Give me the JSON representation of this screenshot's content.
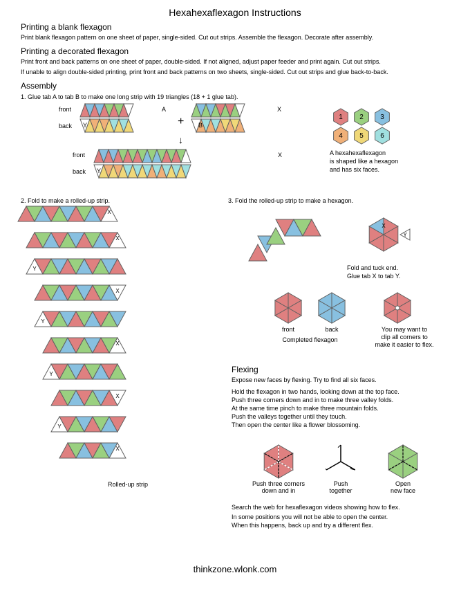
{
  "palette": {
    "red": "#df8080",
    "green": "#9ad080",
    "blue": "#88c0e0",
    "yellow": "#f0d878",
    "orange": "#f0b078",
    "cyan": "#a0e0e0",
    "stroke": "#606060",
    "white": "#ffffff"
  },
  "title": "Hexahexaflexagon Instructions",
  "section1": {
    "heading": "Printing a blank flexagon",
    "text": "Print blank flexagon pattern on one sheet of paper, single-sided. Cut out strips. Assemble the flexagon. Decorate after assembly."
  },
  "section2": {
    "heading": "Printing a decorated flexagon",
    "text1": "Print front and back patterns on one sheet of paper, double-sided. If not aligned, adjust paper feeder and print again. Cut out strips.",
    "text2": "If unable to align double-sided printing, print front and back patterns on two sheets, single-sided. Cut out strips and glue back-to-back."
  },
  "assembly": {
    "heading": "Assembly",
    "step1": "1. Glue tab A to tab B to make one long strip with 19 triangles (18 + 1 glue tab).",
    "step2": "2. Fold to make a rolled-up strip.",
    "step3": "3. Fold the rolled-up strip to make a hexagon.",
    "labels": {
      "front": "front",
      "back": "back",
      "A": "A",
      "B": "B",
      "X": "X",
      "Y": "Y",
      "plus": "+",
      "arrow_down": "↓"
    },
    "rolled_caption": "Rolled-up strip",
    "hexnums": [
      "1",
      "2",
      "3",
      "4",
      "5",
      "6"
    ],
    "hexnums_text": [
      "A hexahexaflexagon",
      "is shaped like a hexagon",
      "and has six faces."
    ],
    "fold_tuck": [
      "Fold and tuck end.",
      "Glue tab X to tab Y."
    ],
    "completed": "Completed flexagon",
    "clip": [
      "You may want to",
      "clip all corners to",
      "make it easier to flex."
    ]
  },
  "flexing": {
    "heading": "Flexing",
    "intro": "Expose new faces by flexing. Try to find all six faces.",
    "steps": [
      "Hold the flexagon in two hands, looking down at the top face.",
      "Push three corners down and in to make three valley folds.",
      "At the same time pinch to make three mountain folds.",
      "Push the valleys together until they touch.",
      "Then open the center like a flower blossoming."
    ],
    "captions": [
      "Push three corners\ndown and in",
      "Push\ntogether",
      "Open\nnew face"
    ],
    "search": "Search the web for hexaflexagon videos showing how to flex.",
    "note": [
      "In some positions you will not be able to open the center.",
      "When this happens, back up and try a different flex."
    ]
  },
  "footer": "thinkzone.wlonk.com",
  "strips": {
    "tri_w": 22,
    "front_top": [
      "red",
      "blue",
      "red",
      "blue",
      "red",
      "green",
      "red",
      "green",
      "red",
      "white"
    ],
    "back_top": [
      "white",
      "yellow",
      "orange",
      "yellow",
      "orange",
      "yellow",
      "cyan",
      "yellow",
      "cyan",
      "yellow"
    ],
    "front_top2": [
      "green",
      "blue",
      "green",
      "blue",
      "green",
      "red",
      "green",
      "red",
      "green",
      "white"
    ],
    "back_top2": [
      "white",
      "orange",
      "cyan",
      "orange",
      "cyan",
      "orange",
      "yellow",
      "orange",
      "yellow",
      "orange"
    ],
    "joined_front": [
      "red",
      "blue",
      "red",
      "blue",
      "red",
      "green",
      "red",
      "green",
      "red",
      "green",
      "blue",
      "green",
      "blue",
      "green",
      "red",
      "green",
      "red",
      "green",
      "white"
    ],
    "joined_back": [
      "white",
      "yellow",
      "orange",
      "yellow",
      "orange",
      "yellow",
      "cyan",
      "yellow",
      "cyan",
      "yellow",
      "cyan",
      "orange",
      "cyan",
      "orange",
      "cyan",
      "yellow",
      "cyan",
      "yellow",
      "cyan"
    ]
  },
  "rolled_rows": [
    {
      "start": 0,
      "n": 11,
      "colors": [
        "red",
        "green",
        "blue",
        "red",
        "green",
        "blue",
        "red",
        "green",
        "blue",
        "red",
        "white"
      ],
      "skip_first": false,
      "y_first": false
    },
    {
      "start": 1,
      "n": 11,
      "colors": [
        "red",
        "green",
        "blue",
        "red",
        "green",
        "blue",
        "red",
        "green",
        "blue",
        "red",
        "white"
      ],
      "skip_first": false,
      "y_first": false
    },
    {
      "start": 1,
      "n": 11,
      "colors": [
        "white",
        "red",
        "green",
        "blue",
        "red",
        "green",
        "blue",
        "red",
        "green",
        "blue",
        "red"
      ],
      "skip_first": false,
      "y_first": true
    },
    {
      "start": 2,
      "n": 10,
      "colors": [
        "red",
        "green",
        "blue",
        "red",
        "green",
        "blue",
        "red",
        "green",
        "blue",
        "white"
      ],
      "skip_first": false,
      "y_first": false
    },
    {
      "start": 2,
      "n": 10,
      "colors": [
        "white",
        "red",
        "green",
        "blue",
        "red",
        "green",
        "blue",
        "red",
        "green",
        "blue"
      ],
      "skip_first": false,
      "y_first": true
    },
    {
      "start": 3,
      "n": 9,
      "colors": [
        "red",
        "green",
        "blue",
        "red",
        "green",
        "blue",
        "red",
        "green",
        "white"
      ],
      "skip_first": false,
      "y_first": false
    },
    {
      "start": 3,
      "n": 9,
      "colors": [
        "white",
        "red",
        "green",
        "blue",
        "red",
        "green",
        "blue",
        "red",
        "green"
      ],
      "skip_first": false,
      "y_first": true
    },
    {
      "start": 4,
      "n": 8,
      "colors": [
        "red",
        "green",
        "blue",
        "red",
        "green",
        "blue",
        "red",
        "white"
      ],
      "skip_first": false,
      "y_first": false
    },
    {
      "start": 4,
      "n": 8,
      "colors": [
        "white",
        "red",
        "green",
        "blue",
        "red",
        "green",
        "blue",
        "red"
      ],
      "skip_first": false,
      "y_first": true
    },
    {
      "start": 5,
      "n": 7,
      "colors": [
        "red",
        "green",
        "blue",
        "red",
        "green",
        "blue",
        "white"
      ],
      "skip_first": false,
      "y_first": false
    }
  ],
  "fold_hex_strip": [
    "red",
    "blue",
    "green",
    "red",
    "blue",
    "green",
    "red"
  ]
}
